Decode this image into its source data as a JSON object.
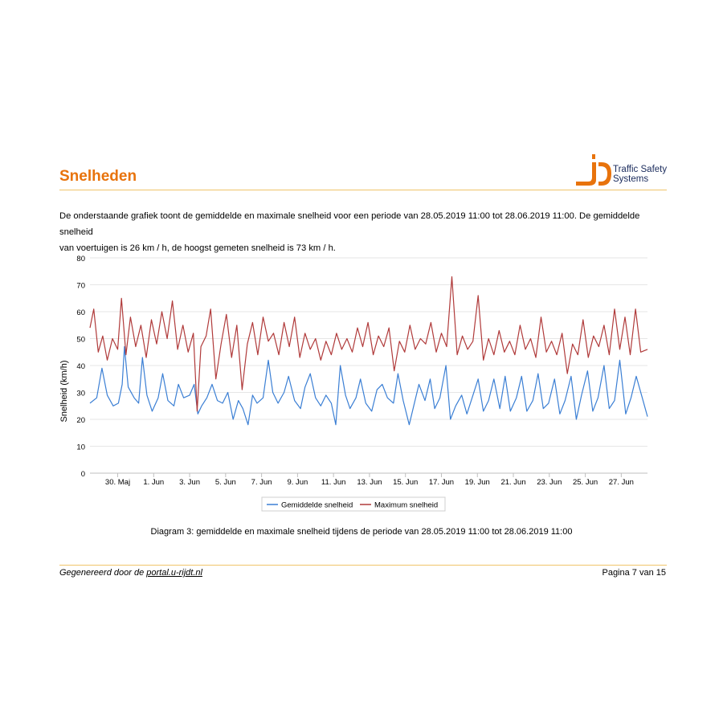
{
  "page": {
    "title": "Snelheden",
    "intro_line1": "De onderstaande grafiek toont de gemiddelde en maximale snelheid voor een periode van 28.05.2019 11:00 tot 28.06.2019 11:00. De gemiddelde snelheid",
    "intro_line2": "van voertuigen is 26 km / h, de hoogst gemeten snelheid is 73 km / h.",
    "caption": "Diagram 3: gemiddelde en maximale snelheid tijdens de periode van 28.05.2019 11:00 tot 28.06.2019 11:00",
    "footer_prefix": "Gegenereerd door de",
    "footer_link": "portal.u-rijdt.nl",
    "page_number": "Pagina 7 van 15"
  },
  "logo": {
    "text_line1": "Traffic Safety",
    "text_line2": "Systems",
    "accent_color": "#e8730c",
    "text_color": "#1a2b5c"
  },
  "chart_data": {
    "type": "line",
    "title": "",
    "ylabel": "Snelheid (km/h)",
    "xlabel": "",
    "ylim": [
      0,
      80
    ],
    "yticks": [
      0,
      10,
      20,
      30,
      40,
      50,
      60,
      70,
      80
    ],
    "x_start": "2019-05-28 11:00",
    "x_end": "2019-06-28 11:00",
    "xtick_labels": [
      "30. Maj",
      "1. Jun",
      "3. Jun",
      "5. Jun",
      "7. Jun",
      "9. Jun",
      "11. Jun",
      "13. Jun",
      "15. Jun",
      "17. Jun",
      "19. Jun",
      "21. Jun",
      "23. Jun",
      "25. Jun",
      "27. Jun"
    ],
    "xtick_dates": [
      "2019-05-30",
      "2019-06-01",
      "2019-06-03",
      "2019-06-05",
      "2019-06-07",
      "2019-06-09",
      "2019-06-11",
      "2019-06-13",
      "2019-06-15",
      "2019-06-17",
      "2019-06-19",
      "2019-06-21",
      "2019-06-23",
      "2019-06-25",
      "2019-06-27"
    ],
    "grid": true,
    "legend_position": "bottom",
    "series": [
      {
        "name": "Gemiddelde snelheid",
        "color": "#3b7fd4",
        "points": [
          [
            "2019-05-28 11:00",
            26
          ],
          [
            "2019-05-28 20:00",
            28
          ],
          [
            "2019-05-29 03:00",
            39
          ],
          [
            "2019-05-29 10:00",
            29
          ],
          [
            "2019-05-29 18:00",
            25
          ],
          [
            "2019-05-30 01:00",
            26
          ],
          [
            "2019-05-30 06:00",
            33
          ],
          [
            "2019-05-30 09:00",
            47
          ],
          [
            "2019-05-30 14:00",
            32
          ],
          [
            "2019-05-30 22:00",
            28
          ],
          [
            "2019-05-31 04:00",
            26
          ],
          [
            "2019-05-31 09:00",
            43
          ],
          [
            "2019-05-31 15:00",
            29
          ],
          [
            "2019-05-31 22:00",
            23
          ],
          [
            "2019-06-01 06:00",
            28
          ],
          [
            "2019-06-01 12:00",
            37
          ],
          [
            "2019-06-01 19:00",
            27
          ],
          [
            "2019-06-02 03:00",
            25
          ],
          [
            "2019-06-02 09:00",
            33
          ],
          [
            "2019-06-02 16:00",
            28
          ],
          [
            "2019-06-03 00:00",
            29
          ],
          [
            "2019-06-03 06:00",
            33
          ],
          [
            "2019-06-03 11:00",
            22
          ],
          [
            "2019-06-03 16:00",
            25
          ],
          [
            "2019-06-03 23:00",
            28
          ],
          [
            "2019-06-04 06:00",
            33
          ],
          [
            "2019-06-04 13:00",
            27
          ],
          [
            "2019-06-04 20:00",
            26
          ],
          [
            "2019-06-05 03:00",
            30
          ],
          [
            "2019-06-05 10:00",
            20
          ],
          [
            "2019-06-05 17:00",
            27
          ],
          [
            "2019-06-05 23:00",
            24
          ],
          [
            "2019-06-06 06:00",
            18
          ],
          [
            "2019-06-06 12:00",
            29
          ],
          [
            "2019-06-06 18:00",
            26
          ],
          [
            "2019-06-07 02:00",
            28
          ],
          [
            "2019-06-07 09:00",
            42
          ],
          [
            "2019-06-07 15:00",
            30
          ],
          [
            "2019-06-07 22:00",
            26
          ],
          [
            "2019-06-08 06:00",
            30
          ],
          [
            "2019-06-08 12:00",
            36
          ],
          [
            "2019-06-08 20:00",
            27
          ],
          [
            "2019-06-09 04:00",
            24
          ],
          [
            "2019-06-09 10:00",
            32
          ],
          [
            "2019-06-09 17:00",
            37
          ],
          [
            "2019-06-10 00:00",
            28
          ],
          [
            "2019-06-10 07:00",
            25
          ],
          [
            "2019-06-10 14:00",
            29
          ],
          [
            "2019-06-10 21:00",
            26
          ],
          [
            "2019-06-11 03:00",
            18
          ],
          [
            "2019-06-11 09:00",
            40
          ],
          [
            "2019-06-11 16:00",
            29
          ],
          [
            "2019-06-11 22:00",
            24
          ],
          [
            "2019-06-12 06:00",
            28
          ],
          [
            "2019-06-12 12:00",
            35
          ],
          [
            "2019-06-12 19:00",
            26
          ],
          [
            "2019-06-13 03:00",
            23
          ],
          [
            "2019-06-13 10:00",
            31
          ],
          [
            "2019-06-13 17:00",
            33
          ],
          [
            "2019-06-14 00:00",
            28
          ],
          [
            "2019-06-14 08:00",
            26
          ],
          [
            "2019-06-14 14:00",
            37
          ],
          [
            "2019-06-14 21:00",
            27
          ],
          [
            "2019-06-15 05:00",
            18
          ],
          [
            "2019-06-15 11:00",
            25
          ],
          [
            "2019-06-15 18:00",
            33
          ],
          [
            "2019-06-16 02:00",
            27
          ],
          [
            "2019-06-16 09:00",
            35
          ],
          [
            "2019-06-16 15:00",
            24
          ],
          [
            "2019-06-16 22:00",
            28
          ],
          [
            "2019-06-17 06:00",
            40
          ],
          [
            "2019-06-17 12:00",
            20
          ],
          [
            "2019-06-17 19:00",
            25
          ],
          [
            "2019-06-18 03:00",
            29
          ],
          [
            "2019-06-18 10:00",
            22
          ],
          [
            "2019-06-18 17:00",
            28
          ],
          [
            "2019-06-19 01:00",
            35
          ],
          [
            "2019-06-19 08:00",
            23
          ],
          [
            "2019-06-19 15:00",
            27
          ],
          [
            "2019-06-19 22:00",
            35
          ],
          [
            "2019-06-20 06:00",
            24
          ],
          [
            "2019-06-20 13:00",
            36
          ],
          [
            "2019-06-20 20:00",
            23
          ],
          [
            "2019-06-21 04:00",
            28
          ],
          [
            "2019-06-21 11:00",
            36
          ],
          [
            "2019-06-21 18:00",
            23
          ],
          [
            "2019-06-22 02:00",
            27
          ],
          [
            "2019-06-22 09:00",
            37
          ],
          [
            "2019-06-22 16:00",
            24
          ],
          [
            "2019-06-22 23:00",
            26
          ],
          [
            "2019-06-23 07:00",
            35
          ],
          [
            "2019-06-23 14:00",
            22
          ],
          [
            "2019-06-23 21:00",
            27
          ],
          [
            "2019-06-24 05:00",
            36
          ],
          [
            "2019-06-24 12:00",
            20
          ],
          [
            "2019-06-24 19:00",
            29
          ],
          [
            "2019-06-25 03:00",
            38
          ],
          [
            "2019-06-25 10:00",
            23
          ],
          [
            "2019-06-25 17:00",
            28
          ],
          [
            "2019-06-26 01:00",
            40
          ],
          [
            "2019-06-26 08:00",
            24
          ],
          [
            "2019-06-26 15:00",
            27
          ],
          [
            "2019-06-26 22:00",
            42
          ],
          [
            "2019-06-27 06:00",
            22
          ],
          [
            "2019-06-27 13:00",
            28
          ],
          [
            "2019-06-27 20:00",
            36
          ],
          [
            "2019-06-28 04:00",
            28
          ],
          [
            "2019-06-28 11:00",
            21
          ]
        ]
      },
      {
        "name": "Maximum snelheid",
        "color": "#b03a3a",
        "points": [
          [
            "2019-05-28 11:00",
            54
          ],
          [
            "2019-05-28 16:00",
            61
          ],
          [
            "2019-05-28 22:00",
            45
          ],
          [
            "2019-05-29 04:00",
            51
          ],
          [
            "2019-05-29 10:00",
            42
          ],
          [
            "2019-05-29 17:00",
            50
          ],
          [
            "2019-05-30 00:00",
            46
          ],
          [
            "2019-05-30 05:00",
            65
          ],
          [
            "2019-05-30 11:00",
            44
          ],
          [
            "2019-05-30 17:00",
            58
          ],
          [
            "2019-05-31 00:00",
            47
          ],
          [
            "2019-05-31 07:00",
            55
          ],
          [
            "2019-05-31 14:00",
            43
          ],
          [
            "2019-05-31 21:00",
            57
          ],
          [
            "2019-06-01 04:00",
            48
          ],
          [
            "2019-06-01 11:00",
            60
          ],
          [
            "2019-06-01 18:00",
            50
          ],
          [
            "2019-06-02 01:00",
            64
          ],
          [
            "2019-06-02 08:00",
            46
          ],
          [
            "2019-06-02 15:00",
            55
          ],
          [
            "2019-06-02 22:00",
            45
          ],
          [
            "2019-06-03 05:00",
            52
          ],
          [
            "2019-06-03 10:00",
            23
          ],
          [
            "2019-06-03 15:00",
            47
          ],
          [
            "2019-06-03 22:00",
            51
          ],
          [
            "2019-06-04 04:00",
            61
          ],
          [
            "2019-06-04 11:00",
            35
          ],
          [
            "2019-06-04 18:00",
            48
          ],
          [
            "2019-06-05 01:00",
            59
          ],
          [
            "2019-06-05 08:00",
            43
          ],
          [
            "2019-06-05 15:00",
            55
          ],
          [
            "2019-06-05 22:00",
            31
          ],
          [
            "2019-06-06 05:00",
            48
          ],
          [
            "2019-06-06 12:00",
            56
          ],
          [
            "2019-06-06 19:00",
            44
          ],
          [
            "2019-06-07 02:00",
            58
          ],
          [
            "2019-06-07 09:00",
            49
          ],
          [
            "2019-06-07 16:00",
            52
          ],
          [
            "2019-06-07 23:00",
            44
          ],
          [
            "2019-06-08 06:00",
            56
          ],
          [
            "2019-06-08 13:00",
            47
          ],
          [
            "2019-06-08 20:00",
            58
          ],
          [
            "2019-06-09 03:00",
            43
          ],
          [
            "2019-06-09 10:00",
            52
          ],
          [
            "2019-06-09 17:00",
            46
          ],
          [
            "2019-06-10 00:00",
            50
          ],
          [
            "2019-06-10 07:00",
            42
          ],
          [
            "2019-06-10 14:00",
            49
          ],
          [
            "2019-06-10 21:00",
            44
          ],
          [
            "2019-06-11 04:00",
            52
          ],
          [
            "2019-06-11 11:00",
            46
          ],
          [
            "2019-06-11 18:00",
            50
          ],
          [
            "2019-06-12 01:00",
            45
          ],
          [
            "2019-06-12 08:00",
            54
          ],
          [
            "2019-06-12 15:00",
            47
          ],
          [
            "2019-06-12 22:00",
            56
          ],
          [
            "2019-06-13 05:00",
            44
          ],
          [
            "2019-06-13 12:00",
            51
          ],
          [
            "2019-06-13 19:00",
            47
          ],
          [
            "2019-06-14 02:00",
            54
          ],
          [
            "2019-06-14 09:00",
            38
          ],
          [
            "2019-06-14 16:00",
            49
          ],
          [
            "2019-06-14 23:00",
            45
          ],
          [
            "2019-06-15 06:00",
            55
          ],
          [
            "2019-06-15 13:00",
            46
          ],
          [
            "2019-06-15 20:00",
            50
          ],
          [
            "2019-06-16 03:00",
            48
          ],
          [
            "2019-06-16 10:00",
            56
          ],
          [
            "2019-06-16 17:00",
            45
          ],
          [
            "2019-06-17 00:00",
            52
          ],
          [
            "2019-06-17 07:00",
            47
          ],
          [
            "2019-06-17 14:00",
            73
          ],
          [
            "2019-06-17 21:00",
            44
          ],
          [
            "2019-06-18 04:00",
            51
          ],
          [
            "2019-06-18 11:00",
            46
          ],
          [
            "2019-06-18 18:00",
            49
          ],
          [
            "2019-06-19 01:00",
            66
          ],
          [
            "2019-06-19 08:00",
            42
          ],
          [
            "2019-06-19 15:00",
            50
          ],
          [
            "2019-06-19 22:00",
            44
          ],
          [
            "2019-06-20 05:00",
            53
          ],
          [
            "2019-06-20 12:00",
            45
          ],
          [
            "2019-06-20 19:00",
            49
          ],
          [
            "2019-06-21 02:00",
            44
          ],
          [
            "2019-06-21 09:00",
            55
          ],
          [
            "2019-06-21 16:00",
            46
          ],
          [
            "2019-06-21 23:00",
            50
          ],
          [
            "2019-06-22 06:00",
            43
          ],
          [
            "2019-06-22 13:00",
            58
          ],
          [
            "2019-06-22 20:00",
            45
          ],
          [
            "2019-06-23 03:00",
            49
          ],
          [
            "2019-06-23 10:00",
            44
          ],
          [
            "2019-06-23 17:00",
            52
          ],
          [
            "2019-06-24 00:00",
            37
          ],
          [
            "2019-06-24 07:00",
            48
          ],
          [
            "2019-06-24 14:00",
            44
          ],
          [
            "2019-06-24 21:00",
            57
          ],
          [
            "2019-06-25 04:00",
            43
          ],
          [
            "2019-06-25 11:00",
            51
          ],
          [
            "2019-06-25 18:00",
            47
          ],
          [
            "2019-06-26 01:00",
            55
          ],
          [
            "2019-06-26 08:00",
            44
          ],
          [
            "2019-06-26 15:00",
            61
          ],
          [
            "2019-06-26 22:00",
            46
          ],
          [
            "2019-06-27 05:00",
            58
          ],
          [
            "2019-06-27 12:00",
            44
          ],
          [
            "2019-06-27 19:00",
            61
          ],
          [
            "2019-06-28 02:00",
            45
          ],
          [
            "2019-06-28 11:00",
            46
          ]
        ]
      }
    ]
  }
}
